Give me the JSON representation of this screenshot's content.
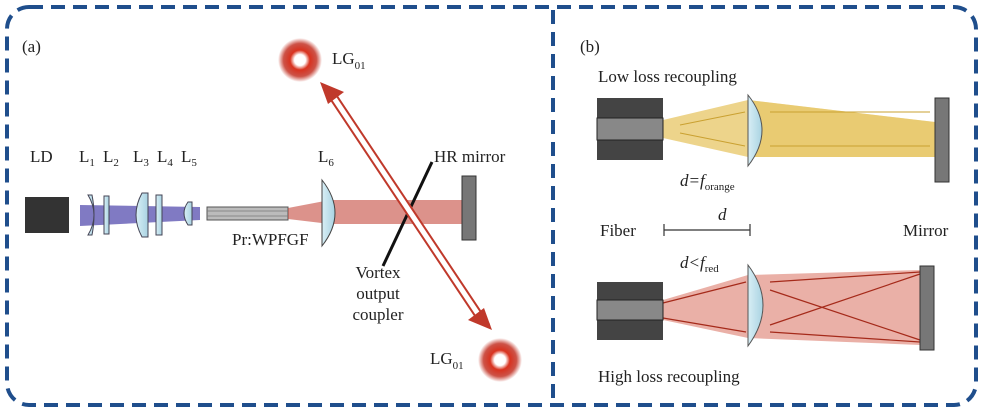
{
  "panel_a": {
    "label": "(a)",
    "source": "LD",
    "lenses": [
      {
        "base": "L",
        "sub": "1"
      },
      {
        "base": "L",
        "sub": "2"
      },
      {
        "base": "L",
        "sub": "3"
      },
      {
        "base": "L",
        "sub": "4"
      },
      {
        "base": "L",
        "sub": "5"
      },
      {
        "base": "L",
        "sub": "6"
      }
    ],
    "fiber": "Pr:WPFGF",
    "mirror": "HR mirror",
    "coupler": [
      "Vortex",
      "output",
      "coupler"
    ],
    "mode_top": {
      "base": "LG",
      "sub": "01"
    },
    "mode_bottom": {
      "base": "LG",
      "sub": "01"
    }
  },
  "panel_b": {
    "label": "(b)",
    "top_title": "Low loss recoupling",
    "top_condition": {
      "main": "d=f",
      "sub": "orange"
    },
    "fiber": "Fiber",
    "distance": "d",
    "mirror": "Mirror",
    "bottom_condition": {
      "main": "d<f",
      "sub": "red"
    },
    "bottom_title": "High loss recoupling"
  }
}
